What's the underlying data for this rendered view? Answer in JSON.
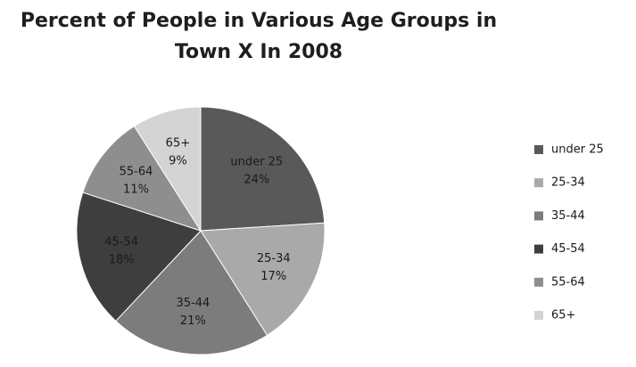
{
  "chart_data": {
    "type": "pie",
    "title": "Percent of People in Various Age Groups in Town X In 2008",
    "categories": [
      "under 25",
      "25-34",
      "35-44",
      "45-54",
      "55-64",
      "65+"
    ],
    "values": [
      24,
      17,
      21,
      18,
      11,
      9
    ],
    "value_labels": [
      "24%",
      "17%",
      "21%",
      "18%",
      "11%",
      "9%"
    ],
    "colors": [
      "#595959",
      "#a9a9a9",
      "#7c7c7c",
      "#3e3e3e",
      "#8e8e8e",
      "#d4d4d4"
    ],
    "legend": "right"
  }
}
